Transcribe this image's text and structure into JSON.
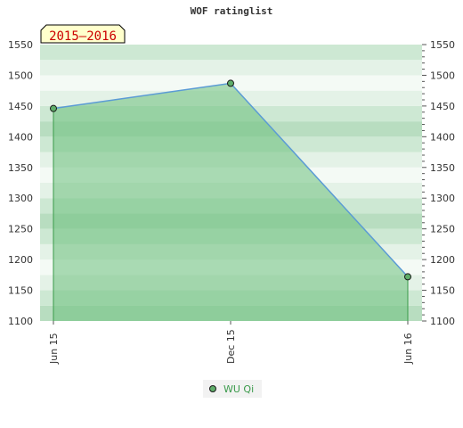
{
  "chart_data": {
    "type": "area",
    "title": "WOF ratinglist",
    "period_badge": "2015–2016",
    "x": [
      "2015-06",
      "2015-12",
      "2016-06"
    ],
    "x_tick_labels": [
      "Jun 15",
      "Dec 15",
      "Jun 16"
    ],
    "series": [
      {
        "name": "WU Qi",
        "values": [
          1446,
          1487,
          1172
        ]
      }
    ],
    "ylim": [
      1100,
      1550
    ],
    "y_ticks": [
      1100,
      1150,
      1200,
      1250,
      1300,
      1350,
      1400,
      1450,
      1500,
      1550
    ],
    "grid": true,
    "legend_placement": "bottom-center",
    "colors": {
      "fill": "#6cbf7c",
      "fill_opacity": 0.55,
      "line": "#5b9bd5",
      "edge": "#3a9a4a",
      "marker": "#5fae6a",
      "badge_bg": "#ffffcc",
      "badge_text": "#cc0000"
    }
  }
}
